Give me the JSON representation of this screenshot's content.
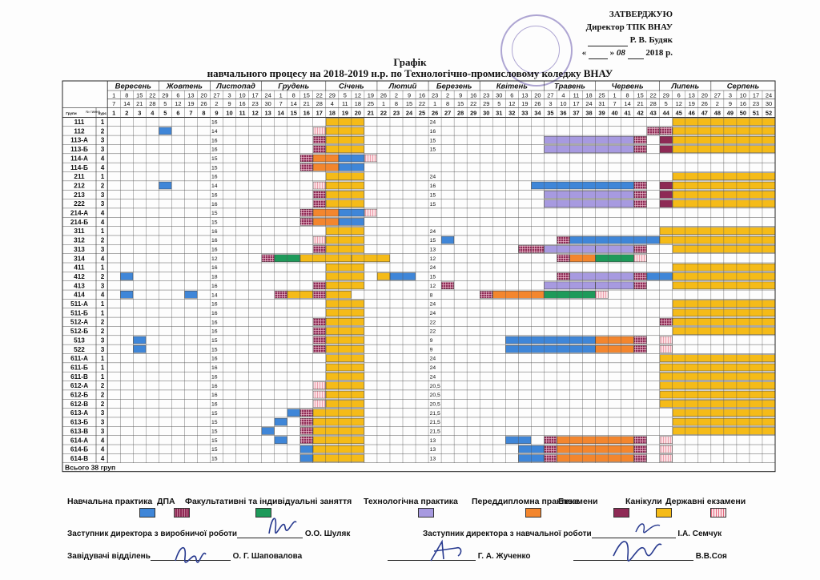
{
  "approval": {
    "heading": "ЗАТВЕРДЖУЮ",
    "position": "Директор ТПК ВНАУ",
    "name": "Р. В. Будяк",
    "date_month": "08",
    "date_year": "2018 р."
  },
  "title": {
    "line1": "Графік",
    "line2": "навчального процесу  на 2018-2019 н.р. по Технологічно-промисловому коледжу ВНАУ"
  },
  "months": [
    {
      "name": "Вересень",
      "weeks": 4
    },
    {
      "name": "Жовтень",
      "weeks": 4
    },
    {
      "name": "Листопад",
      "weeks": 4
    },
    {
      "name": "Грудень",
      "weeks": 5
    },
    {
      "name": "Січень",
      "weeks": 4
    },
    {
      "name": "Лютий",
      "weeks": 4
    },
    {
      "name": "Березень",
      "weeks": 4
    },
    {
      "name": "Квітень",
      "weeks": 5
    },
    {
      "name": "Травень",
      "weeks": 4
    },
    {
      "name": "Червень",
      "weeks": 5
    },
    {
      "name": "Липень",
      "weeks": 4
    },
    {
      "name": "Серпень",
      "weeks": 5
    }
  ],
  "week_start_days": [
    "1",
    "8",
    "15",
    "22",
    "29",
    "6",
    "13",
    "20",
    "27",
    "3",
    "10",
    "17",
    "24",
    "1",
    "8",
    "15",
    "22",
    "29",
    "5",
    "12",
    "19",
    "26",
    "2",
    "9",
    "16",
    "23",
    "2",
    "9",
    "16",
    "23",
    "30",
    "6",
    "13",
    "20",
    "27",
    "4",
    "11",
    "18",
    "25",
    "1",
    "8",
    "15",
    "22",
    "29",
    "6",
    "13",
    "20",
    "27",
    "3",
    "10",
    "17",
    "24"
  ],
  "week_end_days": [
    "7",
    "14",
    "21",
    "28",
    "5",
    "12",
    "19",
    "26",
    "2",
    "9",
    "16",
    "23",
    "30",
    "7",
    "14",
    "21",
    "28",
    "4",
    "11",
    "18",
    "25",
    "1",
    "8",
    "15",
    "22",
    "1",
    "8",
    "15",
    "22",
    "29",
    "5",
    "12",
    "19",
    "26",
    "3",
    "10",
    "17",
    "24",
    "31",
    "7",
    "14",
    "21",
    "28",
    "5",
    "12",
    "19",
    "26",
    "2",
    "9",
    "16",
    "23",
    "30"
  ],
  "header_labels": {
    "group": "Групи",
    "course": "курс",
    "week": "№ тижня"
  },
  "groups": [
    {
      "name": "111",
      "course": "1",
      "h1": "16",
      "h2": "24"
    },
    {
      "name": "112",
      "course": "2",
      "h1": "14",
      "h2": "16"
    },
    {
      "name": "113-А",
      "course": "3",
      "h1": "16",
      "h2": "15"
    },
    {
      "name": "113-Б",
      "course": "3",
      "h1": "16",
      "h2": "15"
    },
    {
      "name": "114-А",
      "course": "4",
      "h1": "15",
      "h2": ""
    },
    {
      "name": "114-Б",
      "course": "4",
      "h1": "15",
      "h2": ""
    },
    {
      "name": "211",
      "course": "1",
      "h1": "16",
      "h2": "24"
    },
    {
      "name": "212",
      "course": "2",
      "h1": "14",
      "h2": "16"
    },
    {
      "name": "213",
      "course": "3",
      "h1": "16",
      "h2": "15"
    },
    {
      "name": "222",
      "course": "3",
      "h1": "16",
      "h2": "15"
    },
    {
      "name": "214-А",
      "course": "4",
      "h1": "15",
      "h2": ""
    },
    {
      "name": "214-Б",
      "course": "4",
      "h1": "15",
      "h2": ""
    },
    {
      "name": "311",
      "course": "1",
      "h1": "16",
      "h2": "24"
    },
    {
      "name": "312",
      "course": "2",
      "h1": "16",
      "h2": "15"
    },
    {
      "name": "313",
      "course": "3",
      "h1": "16",
      "h2": "13"
    },
    {
      "name": "314",
      "course": "4",
      "h1": "12",
      "h2": "12"
    },
    {
      "name": "411",
      "course": "1",
      "h1": "16",
      "h2": "24"
    },
    {
      "name": "412",
      "course": "2",
      "h1": "18",
      "h2": "15"
    },
    {
      "name": "413",
      "course": "3",
      "h1": "16",
      "h2": "12"
    },
    {
      "name": "414",
      "course": "4",
      "h1": "14",
      "h2": "8"
    },
    {
      "name": "511-А",
      "course": "1",
      "h1": "16",
      "h2": "24"
    },
    {
      "name": "511-Б",
      "course": "1",
      "h1": "16",
      "h2": "24"
    },
    {
      "name": "512-А",
      "course": "2",
      "h1": "16",
      "h2": "22"
    },
    {
      "name": "512-Б",
      "course": "2",
      "h1": "16",
      "h2": "22"
    },
    {
      "name": "513",
      "course": "3",
      "h1": "15",
      "h2": "9"
    },
    {
      "name": "522",
      "course": "3",
      "h1": "15",
      "h2": "9"
    },
    {
      "name": "611-А",
      "course": "1",
      "h1": "16",
      "h2": "24"
    },
    {
      "name": "611-Б",
      "course": "1",
      "h1": "16",
      "h2": "24"
    },
    {
      "name": "611-В",
      "course": "1",
      "h1": "16",
      "h2": "24"
    },
    {
      "name": "612-А",
      "course": "2",
      "h1": "16",
      "h2": "20,5"
    },
    {
      "name": "612-Б",
      "course": "2",
      "h1": "16",
      "h2": "20,5"
    },
    {
      "name": "612-В",
      "course": "2",
      "h1": "16",
      "h2": "20,5"
    },
    {
      "name": "613-А",
      "course": "3",
      "h1": "15",
      "h2": "21,5"
    },
    {
      "name": "613-Б",
      "course": "3",
      "h1": "15",
      "h2": "21,5"
    },
    {
      "name": "613-В",
      "course": "3",
      "h1": "15",
      "h2": "21,5"
    },
    {
      "name": "614-А",
      "course": "4",
      "h1": "15",
      "h2": "13"
    },
    {
      "name": "614-Б",
      "course": "4",
      "h1": "15",
      "h2": "13"
    },
    {
      "name": "614-В",
      "course": "4",
      "h1": "15",
      "h2": "13"
    }
  ],
  "total": "Всього 38 груп",
  "colors": {
    "P": "#3f86d8",
    "D": "#8e2a55",
    "F": "#1e9a5a",
    "T": "#a79ae0",
    "R": "#f3862e",
    "E": "#8e2a55",
    "K": "#f5bb18",
    "S": "#e26a7e"
  },
  "legend": [
    {
      "label": "Навчальна практика",
      "code": "P"
    },
    {
      "label": "ДПА",
      "code": "D"
    },
    {
      "label": "Факультативні та індивідуальні заняття",
      "code": "F"
    },
    {
      "label": "Технологічна практика",
      "code": "T"
    },
    {
      "label": "Переддипломна практика",
      "code": "R"
    },
    {
      "label": "Екзамени",
      "code": "E"
    },
    {
      "label": "Канікули",
      "code": "K"
    },
    {
      "label": "Державні екзамени",
      "code": "S"
    }
  ],
  "schedule": [
    [
      [
        18,
        3,
        "K"
      ],
      [
        45,
        8,
        "K"
      ]
    ],
    [
      [
        5,
        1,
        "P"
      ],
      [
        17,
        1,
        "S"
      ],
      [
        18,
        3,
        "K"
      ],
      [
        43,
        1,
        "D"
      ],
      [
        44,
        1,
        "D"
      ],
      [
        45,
        8,
        "K"
      ]
    ],
    [
      [
        17,
        1,
        "D"
      ],
      [
        18,
        3,
        "K"
      ],
      [
        35,
        7,
        "T"
      ],
      [
        42,
        1,
        "D"
      ],
      [
        44,
        1,
        "E"
      ],
      [
        45,
        8,
        "K"
      ]
    ],
    [
      [
        17,
        1,
        "D"
      ],
      [
        18,
        3,
        "K"
      ],
      [
        35,
        7,
        "T"
      ],
      [
        42,
        1,
        "D"
      ],
      [
        44,
        1,
        "E"
      ],
      [
        45,
        8,
        "K"
      ]
    ],
    [
      [
        16,
        1,
        "D"
      ],
      [
        17,
        2,
        "R"
      ],
      [
        19,
        2,
        "P"
      ],
      [
        21,
        1,
        "S"
      ]
    ],
    [
      [
        16,
        1,
        "D"
      ],
      [
        17,
        2,
        "R"
      ],
      [
        19,
        2,
        "P"
      ]
    ],
    [
      [
        18,
        3,
        "K"
      ],
      [
        45,
        8,
        "K"
      ]
    ],
    [
      [
        5,
        1,
        "P"
      ],
      [
        17,
        1,
        "S"
      ],
      [
        18,
        3,
        "K"
      ],
      [
        34,
        8,
        "P"
      ],
      [
        42,
        1,
        "D"
      ],
      [
        44,
        1,
        "E"
      ],
      [
        45,
        8,
        "K"
      ]
    ],
    [
      [
        17,
        1,
        "D"
      ],
      [
        18,
        3,
        "K"
      ],
      [
        35,
        7,
        "T"
      ],
      [
        42,
        1,
        "D"
      ],
      [
        44,
        1,
        "E"
      ],
      [
        45,
        8,
        "K"
      ]
    ],
    [
      [
        17,
        1,
        "D"
      ],
      [
        18,
        3,
        "K"
      ],
      [
        35,
        7,
        "T"
      ],
      [
        42,
        1,
        "D"
      ],
      [
        44,
        1,
        "E"
      ],
      [
        45,
        8,
        "K"
      ]
    ],
    [
      [
        16,
        1,
        "D"
      ],
      [
        17,
        2,
        "R"
      ],
      [
        19,
        2,
        "P"
      ],
      [
        21,
        1,
        "S"
      ]
    ],
    [
      [
        16,
        1,
        "D"
      ],
      [
        17,
        2,
        "R"
      ],
      [
        19,
        2,
        "P"
      ]
    ],
    [
      [
        18,
        3,
        "K"
      ],
      [
        44,
        9,
        "K"
      ]
    ],
    [
      [
        17,
        1,
        "S"
      ],
      [
        18,
        3,
        "K"
      ],
      [
        27,
        1,
        "P"
      ],
      [
        36,
        1,
        "D"
      ],
      [
        37,
        7,
        "P"
      ],
      [
        44,
        9,
        "K"
      ]
    ],
    [
      [
        17,
        1,
        "D"
      ],
      [
        18,
        3,
        "K"
      ],
      [
        33,
        2,
        "D"
      ],
      [
        35,
        4,
        "T"
      ],
      [
        39,
        3,
        "T"
      ],
      [
        42,
        1,
        "D"
      ],
      [
        45,
        8,
        "K"
      ]
    ],
    [
      [
        13,
        1,
        "D"
      ],
      [
        14,
        2,
        "F"
      ],
      [
        16,
        4,
        "K"
      ],
      [
        20,
        3,
        "K"
      ],
      [
        36,
        1,
        "D"
      ],
      [
        37,
        2,
        "R"
      ],
      [
        39,
        3,
        "F"
      ],
      [
        42,
        1,
        "S"
      ]
    ],
    [
      [
        18,
        3,
        "K"
      ],
      [
        45,
        8,
        "K"
      ]
    ],
    [
      [
        2,
        1,
        "P"
      ],
      [
        18,
        3,
        "K"
      ],
      [
        22,
        1,
        "K"
      ],
      [
        23,
        2,
        "P"
      ],
      [
        36,
        1,
        "D"
      ],
      [
        37,
        5,
        "T"
      ],
      [
        42,
        1,
        "D"
      ],
      [
        43,
        2,
        "P"
      ],
      [
        45,
        8,
        "K"
      ]
    ],
    [
      [
        17,
        1,
        "D"
      ],
      [
        18,
        3,
        "K"
      ],
      [
        27,
        1,
        "D"
      ],
      [
        35,
        4,
        "T"
      ],
      [
        39,
        3,
        "T"
      ],
      [
        42,
        1,
        "D"
      ],
      [
        45,
        8,
        "K"
      ]
    ],
    [
      [
        2,
        1,
        "P"
      ],
      [
        7,
        1,
        "P"
      ],
      [
        14,
        1,
        "D"
      ],
      [
        15,
        2,
        "K"
      ],
      [
        17,
        1,
        "D"
      ],
      [
        18,
        2,
        "K"
      ],
      [
        30,
        1,
        "D"
      ],
      [
        31,
        4,
        "R"
      ],
      [
        35,
        4,
        "F"
      ],
      [
        39,
        1,
        "S"
      ]
    ],
    [
      [
        18,
        3,
        "K"
      ],
      [
        45,
        8,
        "K"
      ]
    ],
    [
      [
        18,
        3,
        "K"
      ],
      [
        45,
        8,
        "K"
      ]
    ],
    [
      [
        17,
        1,
        "D"
      ],
      [
        18,
        3,
        "K"
      ],
      [
        44,
        1,
        "D"
      ],
      [
        45,
        8,
        "K"
      ]
    ],
    [
      [
        17,
        1,
        "D"
      ],
      [
        18,
        3,
        "K"
      ],
      [
        45,
        8,
        "K"
      ]
    ],
    [
      [
        3,
        1,
        "P"
      ],
      [
        17,
        1,
        "D"
      ],
      [
        18,
        3,
        "K"
      ],
      [
        32,
        7,
        "P"
      ],
      [
        39,
        3,
        "R"
      ],
      [
        42,
        1,
        "D"
      ],
      [
        44,
        1,
        "S"
      ]
    ],
    [
      [
        3,
        1,
        "P"
      ],
      [
        17,
        1,
        "D"
      ],
      [
        18,
        3,
        "K"
      ],
      [
        32,
        7,
        "P"
      ],
      [
        39,
        3,
        "R"
      ],
      [
        42,
        1,
        "D"
      ],
      [
        44,
        1,
        "S"
      ]
    ],
    [
      [
        18,
        3,
        "K"
      ],
      [
        44,
        9,
        "K"
      ]
    ],
    [
      [
        18,
        3,
        "K"
      ],
      [
        44,
        9,
        "K"
      ]
    ],
    [
      [
        18,
        3,
        "K"
      ],
      [
        44,
        9,
        "K"
      ]
    ],
    [
      [
        17,
        1,
        "S"
      ],
      [
        18,
        3,
        "K"
      ],
      [
        44,
        9,
        "K"
      ]
    ],
    [
      [
        17,
        1,
        "S"
      ],
      [
        18,
        3,
        "K"
      ],
      [
        44,
        9,
        "K"
      ]
    ],
    [
      [
        17,
        1,
        "S"
      ],
      [
        18,
        3,
        "K"
      ],
      [
        44,
        9,
        "K"
      ]
    ],
    [
      [
        15,
        1,
        "P"
      ],
      [
        16,
        1,
        "D"
      ],
      [
        17,
        4,
        "K"
      ],
      [
        45,
        8,
        "K"
      ]
    ],
    [
      [
        14,
        1,
        "P"
      ],
      [
        16,
        1,
        "D"
      ],
      [
        17,
        4,
        "K"
      ],
      [
        45,
        8,
        "K"
      ]
    ],
    [
      [
        13,
        1,
        "P"
      ],
      [
        16,
        1,
        "D"
      ],
      [
        17,
        4,
        "K"
      ],
      [
        45,
        8,
        "K"
      ]
    ],
    [
      [
        14,
        1,
        "P"
      ],
      [
        16,
        1,
        "D"
      ],
      [
        17,
        4,
        "K"
      ],
      [
        32,
        2,
        "P"
      ],
      [
        35,
        1,
        "D"
      ],
      [
        36,
        6,
        "R"
      ],
      [
        42,
        1,
        "D"
      ],
      [
        44,
        1,
        "S"
      ]
    ],
    [
      [
        16,
        1,
        "P"
      ],
      [
        17,
        4,
        "K"
      ],
      [
        33,
        2,
        "P"
      ],
      [
        35,
        1,
        "D"
      ],
      [
        36,
        6,
        "R"
      ],
      [
        42,
        1,
        "D"
      ],
      [
        44,
        1,
        "S"
      ]
    ],
    [
      [
        16,
        1,
        "P"
      ],
      [
        17,
        4,
        "K"
      ],
      [
        33,
        2,
        "P"
      ],
      [
        35,
        1,
        "D"
      ],
      [
        36,
        6,
        "R"
      ],
      [
        42,
        1,
        "D"
      ],
      [
        44,
        1,
        "S"
      ]
    ]
  ],
  "signatures": [
    {
      "role": "Заступник директора з виробничої роботи",
      "name": "О.О. Шуляк"
    },
    {
      "role": "Заступник директора з навчальної роботи",
      "name": "І.А. Семчук"
    },
    {
      "role": "Завідувачі відділень",
      "name": "О. Г. Шаповалова"
    },
    {
      "role": "",
      "name": "Г. А. Жученко"
    },
    {
      "role": "",
      "name": "В.В.Соя"
    }
  ]
}
